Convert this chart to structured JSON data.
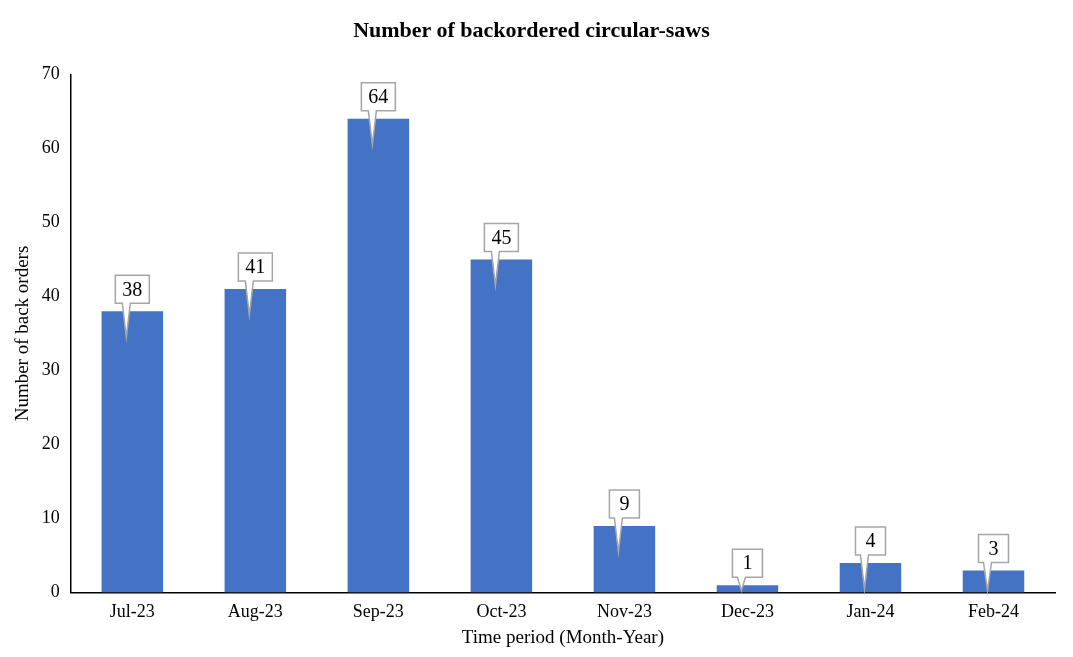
{
  "chart_data": {
    "type": "bar",
    "title": "Number of backordered circular-saws",
    "xlabel": "Time period (Month-Year)",
    "ylabel": "Number of back orders",
    "categories": [
      "Jul-23",
      "Aug-23",
      "Sep-23",
      "Oct-23",
      "Nov-23",
      "Dec-23",
      "Jan-24",
      "Feb-24"
    ],
    "values": [
      38,
      41,
      64,
      45,
      9,
      1,
      4,
      3
    ],
    "color": "#4472c4",
    "ylim": [
      0,
      70
    ],
    "yticks": [
      0,
      10,
      20,
      30,
      40,
      50,
      60,
      70
    ],
    "grid": false,
    "legend": false,
    "data_labels": true
  }
}
